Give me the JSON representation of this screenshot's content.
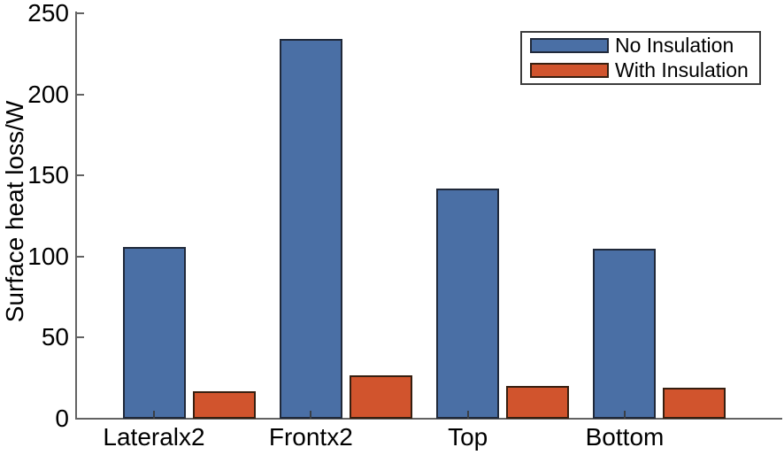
{
  "chart_data": {
    "type": "bar",
    "title": "",
    "xlabel": "",
    "ylabel": "Surface heat loss/W",
    "categories": [
      "Lateralx2",
      "Frontx2",
      "Top",
      "Bottom"
    ],
    "series": [
      {
        "name": "No Insulation",
        "color": "#4a6fa5",
        "border_color": "#20293a",
        "values": [
          106,
          234,
          142,
          105
        ]
      },
      {
        "name": "With Insulation",
        "color": "#d1542d",
        "border_color": "#371f10",
        "values": [
          17,
          27,
          20,
          19
        ]
      }
    ],
    "ylim": [
      0,
      250
    ],
    "yticks": [
      0,
      50,
      100,
      150,
      200,
      250
    ],
    "grid": false,
    "legend_position": "top-right",
    "axis_color": "#636363",
    "text_color": "#000000"
  }
}
